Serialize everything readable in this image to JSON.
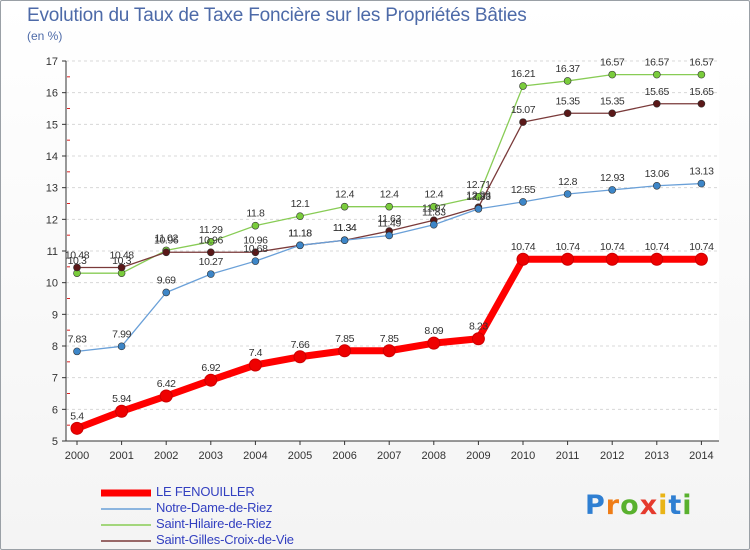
{
  "page": {
    "title": "Evolution du Taux de Taxe Foncière sur les Propriétés Bâties",
    "subtitle": "(en %)"
  },
  "chart_data": {
    "type": "line",
    "title": "Evolution du Taux de Taxe Foncière sur les Propriétés Bâties",
    "ylabel": "(en %)",
    "xlabel": "",
    "ylim": [
      5,
      17
    ],
    "yticks": [
      5,
      6,
      7,
      8,
      9,
      10,
      11,
      12,
      13,
      14,
      15,
      16,
      17
    ],
    "categories": [
      "2000",
      "2001",
      "2002",
      "2003",
      "2004",
      "2005",
      "2006",
      "2007",
      "2008",
      "2009",
      "2010",
      "2011",
      "2012",
      "2013",
      "2014"
    ],
    "series": [
      {
        "name": "Saint-Hilaire-de-Riez",
        "color": "#88cc55",
        "marker": "#7acc3c",
        "values": [
          10.3,
          10.3,
          11.02,
          11.29,
          11.8,
          12.1,
          12.4,
          12.4,
          12.4,
          12.71,
          16.21,
          16.37,
          16.57,
          16.57,
          16.57
        ],
        "labels": [
          "10.3",
          "10.3",
          "11.02",
          "11.29",
          "11.8",
          "12.1",
          "12.4",
          "12.4",
          "12.4",
          "12.71",
          "16.21",
          "16.37",
          "16.57",
          "16.57",
          "16.57"
        ]
      },
      {
        "name": "Saint-Gilles-Croix-de-Vie",
        "color": "#7a3a3a",
        "marker": "#5a1818",
        "values": [
          10.48,
          10.48,
          10.96,
          10.96,
          10.96,
          11.18,
          11.34,
          11.63,
          11.97,
          12.38,
          15.07,
          15.35,
          15.35,
          15.65,
          15.65
        ],
        "labels": [
          "10.48",
          "10.48",
          "10.96",
          "10.96",
          "10.96",
          "11.18",
          "11.34",
          "11.63",
          "11.97",
          "12.38",
          "15.07",
          "15.35",
          "15.35",
          "15.65",
          "15.65"
        ]
      },
      {
        "name": "Notre-Dame-de-Riez",
        "color": "#6aa0d8",
        "marker": "#3d86c8",
        "values": [
          7.83,
          7.99,
          9.69,
          10.27,
          10.68,
          11.18,
          11.34,
          11.49,
          11.83,
          12.33,
          12.55,
          12.8,
          12.93,
          13.06,
          13.13
        ],
        "labels": [
          "7.83",
          "7.99",
          "9.69",
          "10.27",
          "10.68",
          "11.18",
          "11.34",
          "11.49",
          "11.83",
          "12.33",
          "12.55",
          "12.8",
          "12.93",
          "13.06",
          "13.13"
        ]
      },
      {
        "name": "LE FENOUILLER",
        "color": "#ff0000",
        "marker": "#ee0000",
        "values": [
          5.4,
          5.94,
          6.42,
          6.92,
          7.4,
          7.66,
          7.85,
          7.85,
          8.09,
          8.23,
          10.74,
          10.74,
          10.74,
          10.74,
          10.74
        ],
        "labels": [
          "5.4",
          "5.94",
          "6.42",
          "6.92",
          "7.4",
          "7.66",
          "7.85",
          "7.85",
          "8.09",
          "8.23",
          "10.74",
          "10.74",
          "10.74",
          "10.74",
          "10.74"
        ]
      }
    ],
    "legend": {
      "position": "bottom-left",
      "items": [
        {
          "name": "LE FENOUILLER",
          "color": "#ff0000",
          "text_color": "#3340c0"
        },
        {
          "name": "Notre-Dame-de-Riez",
          "color": "#6aa0d8",
          "text_color": "#3340c0"
        },
        {
          "name": "Saint-Hilaire-de-Riez",
          "color": "#88cc55",
          "text_color": "#3340c0"
        },
        {
          "name": "Saint-Gilles-Croix-de-Vie",
          "color": "#7a3a3a",
          "text_color": "#3340c0"
        }
      ]
    }
  },
  "logo": {
    "letters": [
      "P",
      "r",
      "o",
      "x",
      "i",
      "t",
      "i"
    ],
    "colors": [
      "#2f7fd2",
      "#ef7d17",
      "#59b12e",
      "#e53a2d",
      "#e9b416",
      "#2f7fd2",
      "#59b12e"
    ]
  }
}
